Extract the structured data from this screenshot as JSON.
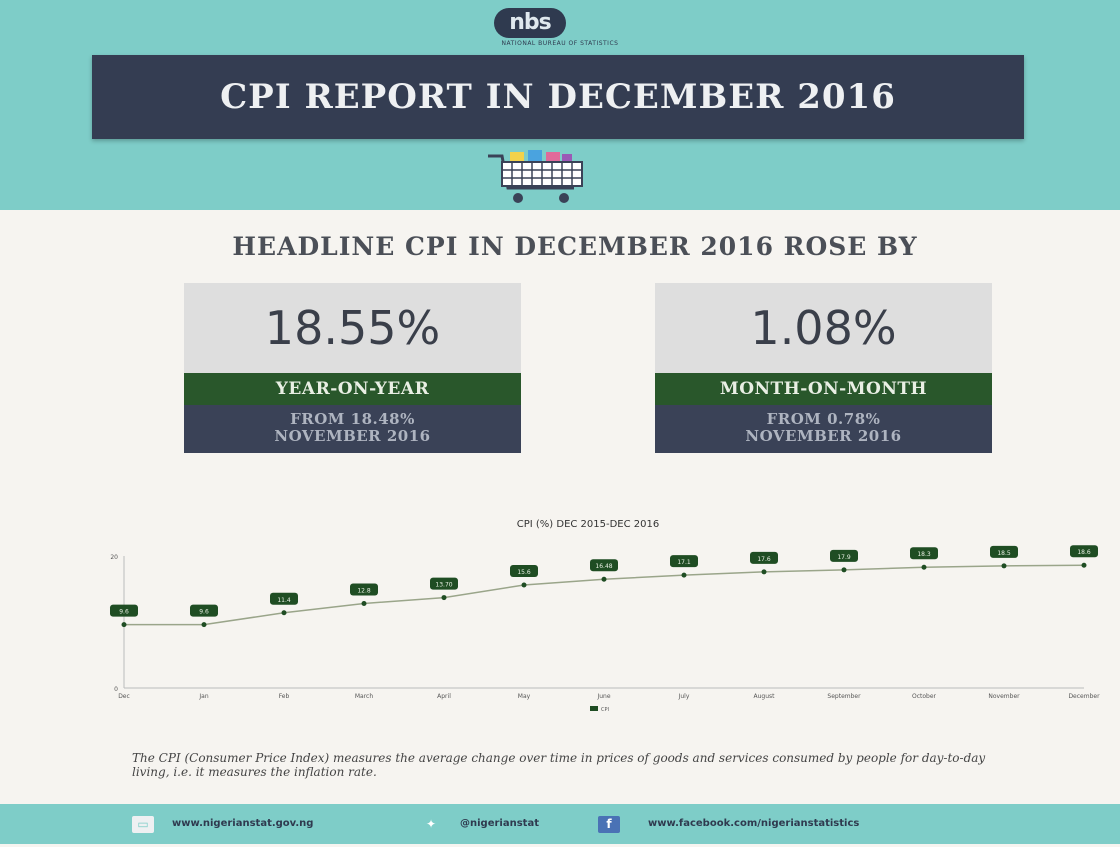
{
  "header": {
    "logo_text": "nbs",
    "logo_subtext": "NATIONAL BUREAU OF STATISTICS",
    "title": "CPI REPORT IN DECEMBER 2016",
    "cart_icon": "shopping-cart-icon",
    "background_color": "#7ecdc8",
    "title_box_color": "#343d52"
  },
  "headline": "HEADLINE CPI IN DECEMBER 2016 ROSE BY",
  "stats": [
    {
      "value": "18.55%",
      "label": "YEAR-ON-YEAR",
      "from_line1": "FROM 18.48%",
      "from_line2": "NOVEMBER 2016"
    },
    {
      "value": "1.08%",
      "label": "MONTH-ON-MONTH",
      "from_line1": "FROM 0.78%",
      "from_line2": "NOVEMBER 2016"
    }
  ],
  "chart_data": {
    "type": "line",
    "title": "CPI (%) DEC 2015-DEC 2016",
    "categories": [
      "Dec",
      "Jan",
      "Feb",
      "March",
      "April",
      "May",
      "June",
      "July",
      "August",
      "September",
      "October",
      "November",
      "December"
    ],
    "series": [
      {
        "name": "CPI",
        "values": [
          9.6,
          9.6,
          11.4,
          12.8,
          13.7,
          15.6,
          16.48,
          17.1,
          17.6,
          17.9,
          18.3,
          18.5,
          18.6
        ]
      }
    ],
    "data_labels": [
      "9.6",
      "9.6",
      "11.4",
      "12.8",
      "13.70",
      "15.6",
      "16.48",
      "17.1",
      "17.6",
      "17.9",
      "18.3",
      "18.5",
      "18.6"
    ],
    "y_ticks": [
      "0",
      "20"
    ],
    "ylim": [
      0,
      20
    ],
    "grid": false,
    "legend": "bottom",
    "line_color": "#9aa58a",
    "label_color": "#1f4d23"
  },
  "description": "The CPI (Consumer Price Index) measures the average change over time in prices of goods and services consumed by people for day-to-day living, i.e. it measures the inflation rate.",
  "footer": {
    "website": "www.nigerianstat.gov.ng",
    "twitter": "@nigerianstat",
    "facebook": "www.facebook.com/nigerianstatistics",
    "web_icon": "web-icon",
    "twitter_icon": "twitter-icon",
    "facebook_icon": "facebook-icon"
  }
}
